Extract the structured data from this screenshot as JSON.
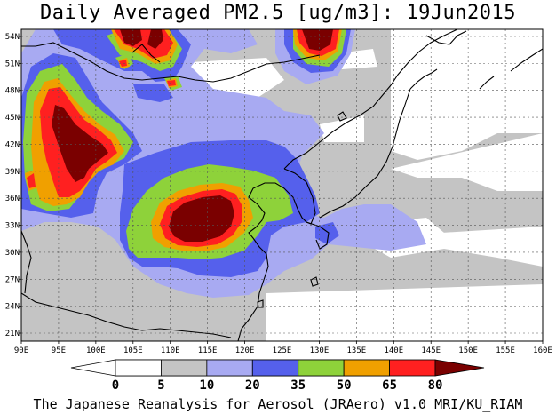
{
  "title": "Daily Averaged PM2.5 [ug/m3]: 19Jun2015",
  "lat_labels": [
    "54N",
    "51N",
    "48N",
    "45N",
    "42N",
    "39N",
    "36N",
    "33N",
    "30N",
    "27N",
    "24N",
    "21N"
  ],
  "lon_labels": [
    "90E",
    "95E",
    "100E",
    "105E",
    "110E",
    "115E",
    "120E",
    "125E",
    "130E",
    "135E",
    "140E",
    "145E",
    "150E",
    "155E",
    "160E"
  ],
  "colorbar": {
    "levels": [
      "0",
      "5",
      "10",
      "20",
      "35",
      "50",
      "65",
      "80"
    ],
    "colors": [
      "#ffffff",
      "#c4c4c4",
      "#a8aaf2",
      "#5560ec",
      "#8ed23a",
      "#f0a000",
      "#ff2020",
      "#7a0000"
    ]
  },
  "credit": "The Japanese Reanalysis for Aerosol (JRAero) v1.0 MRI/KU_RIAM",
  "palette": {
    "white": "#ffffff",
    "gray": "#c4c4c4",
    "lightblue": "#a8aaf2",
    "blue": "#5560ec",
    "green": "#8ed23a",
    "orange": "#f0a000",
    "red": "#ff2020",
    "darkred": "#7a0000"
  }
}
